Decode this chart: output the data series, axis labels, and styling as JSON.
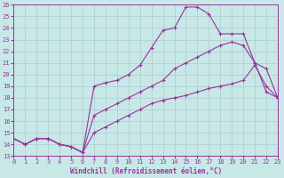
{
  "xlabel": "Windchill (Refroidissement éolien,°C)",
  "xlim": [
    0,
    23
  ],
  "ylim": [
    13,
    26
  ],
  "xticks": [
    0,
    1,
    2,
    3,
    4,
    5,
    6,
    7,
    8,
    9,
    10,
    11,
    12,
    13,
    14,
    15,
    16,
    17,
    18,
    19,
    20,
    21,
    22,
    23
  ],
  "yticks": [
    13,
    14,
    15,
    16,
    17,
    18,
    19,
    20,
    21,
    22,
    23,
    24,
    25,
    26
  ],
  "line_color": "#993399",
  "bg_color": "#c8e8e8",
  "grid_color": "#aacccc",
  "line1_x": [
    0,
    1,
    2,
    3,
    4,
    5,
    6,
    7,
    8,
    9,
    10,
    11,
    12,
    13,
    14,
    15,
    16,
    17,
    18,
    19,
    20,
    21,
    22,
    23
  ],
  "line1_y": [
    14.5,
    14.0,
    14.5,
    14.5,
    14.0,
    13.8,
    13.3,
    19.0,
    19.3,
    19.5,
    20.0,
    20.8,
    22.3,
    23.8,
    24.0,
    25.8,
    25.8,
    25.2,
    23.5,
    23.5,
    23.5,
    21.0,
    18.5,
    18.0
  ],
  "line2_x": [
    0,
    1,
    2,
    3,
    4,
    5,
    6,
    7,
    8,
    9,
    10,
    11,
    12,
    13,
    14,
    15,
    16,
    17,
    18,
    19,
    20,
    21,
    22,
    23
  ],
  "line2_y": [
    14.5,
    14.0,
    14.5,
    14.5,
    14.0,
    13.8,
    13.3,
    16.5,
    17.0,
    17.5,
    18.0,
    18.5,
    19.0,
    19.5,
    20.5,
    21.0,
    21.5,
    22.0,
    22.5,
    22.8,
    22.5,
    21.0,
    20.5,
    18.0
  ],
  "line3_x": [
    0,
    1,
    2,
    3,
    4,
    5,
    6,
    7,
    8,
    9,
    10,
    11,
    12,
    13,
    14,
    15,
    16,
    17,
    18,
    19,
    20,
    21,
    22,
    23
  ],
  "line3_y": [
    14.5,
    14.0,
    14.5,
    14.5,
    14.0,
    13.8,
    13.3,
    15.0,
    15.5,
    16.0,
    16.5,
    17.0,
    17.5,
    17.8,
    18.0,
    18.2,
    18.5,
    18.8,
    19.0,
    19.2,
    19.5,
    20.8,
    19.0,
    18.0
  ],
  "tick_fontsize": 5.0,
  "xlabel_fontsize": 5.5
}
